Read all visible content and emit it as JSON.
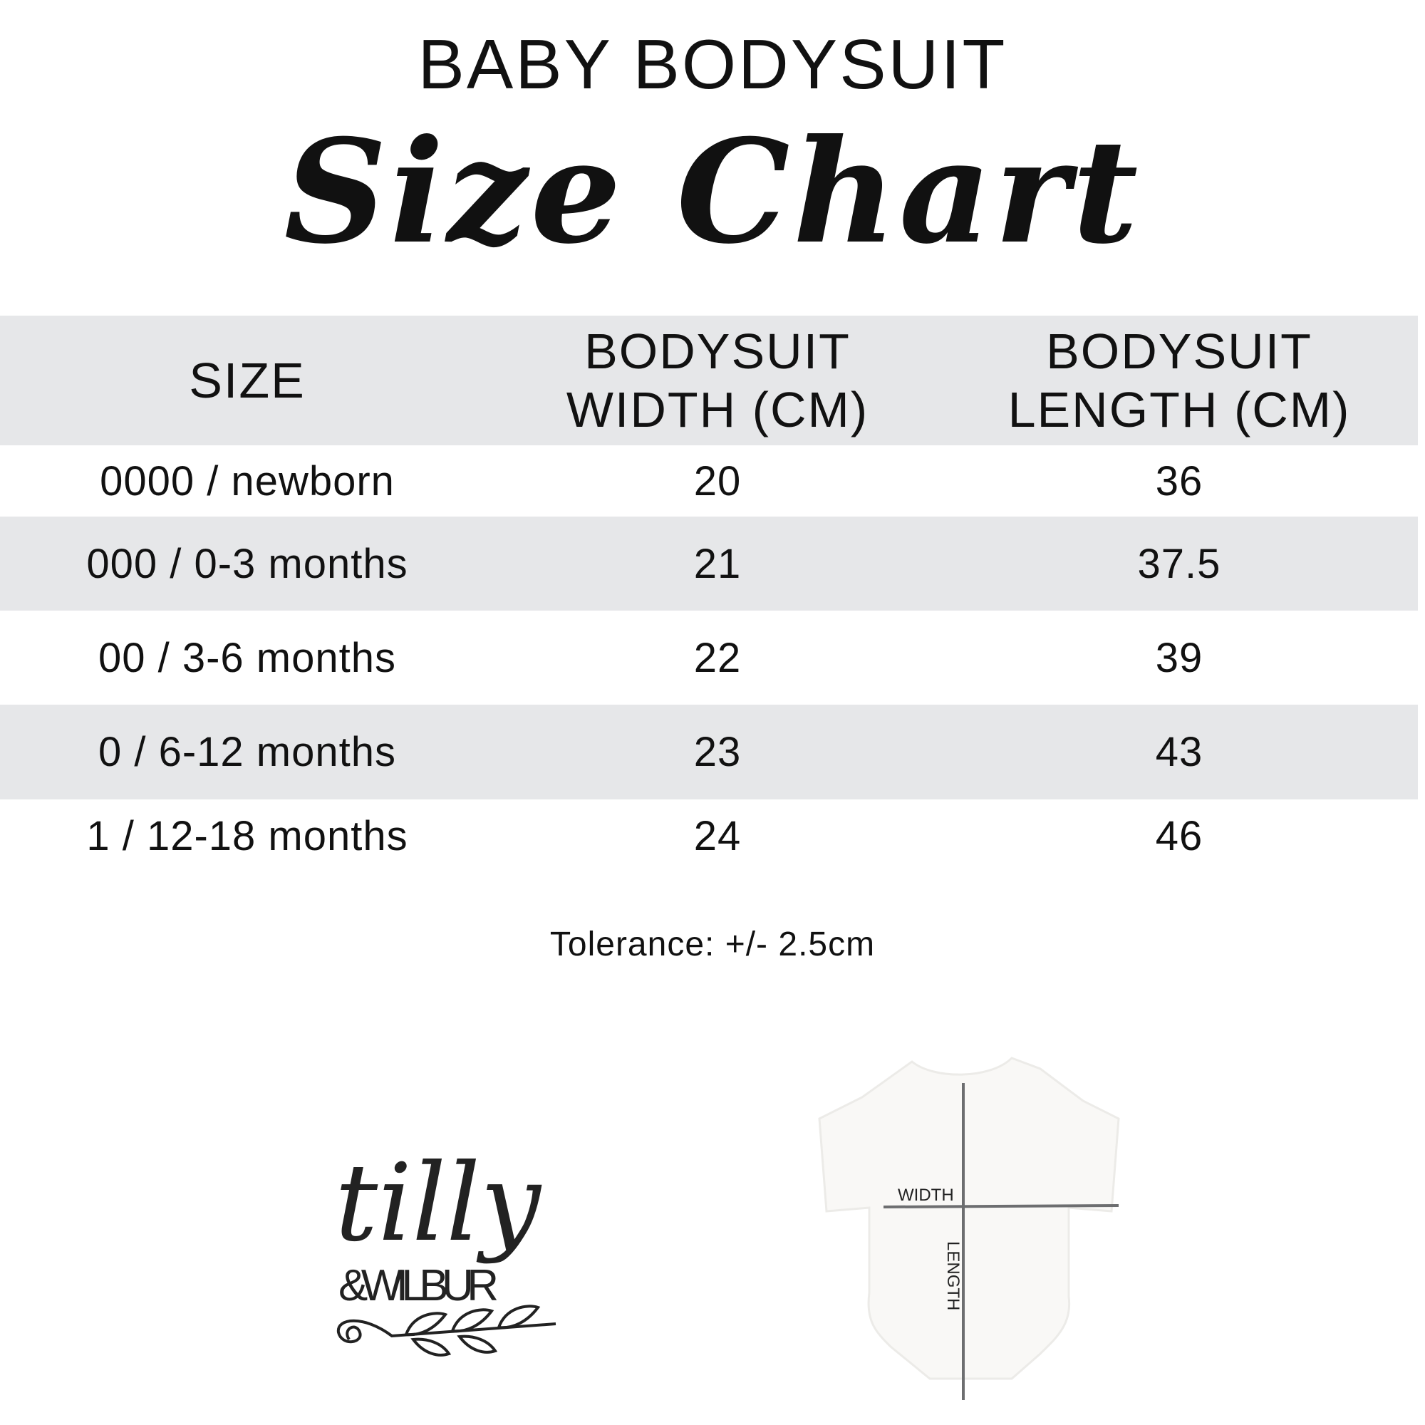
{
  "header": {
    "title": "BABY BODYSUIT",
    "subtitle": "Size Chart"
  },
  "table": {
    "columns": [
      {
        "line1": "SIZE",
        "line2": ""
      },
      {
        "line1": "BODYSUIT",
        "line2": "WIDTH (CM)"
      },
      {
        "line1": "BODYSUIT",
        "line2": "LENGTH (CM)"
      }
    ],
    "rows": [
      {
        "size": "0000 / newborn",
        "width": "20",
        "length": "36"
      },
      {
        "size": "000 / 0-3 months",
        "width": "21",
        "length": "37.5"
      },
      {
        "size": "00 / 3-6 months",
        "width": "22",
        "length": "39"
      },
      {
        "size": "0 / 6-12 months",
        "width": "23",
        "length": "43"
      },
      {
        "size": "1 / 12-18 months",
        "width": "24",
        "length": "46"
      }
    ],
    "header_bg": "#e6e7e9",
    "stripe_bg": "#e6e7e9"
  },
  "tolerance": "Tolerance: +/- 2.5cm",
  "logo": {
    "line1": "tilly",
    "line2": "&WILBUR"
  },
  "diagram": {
    "width_label": "WIDTH",
    "length_label": "LENGTH",
    "line_color": "#6d6e70"
  }
}
